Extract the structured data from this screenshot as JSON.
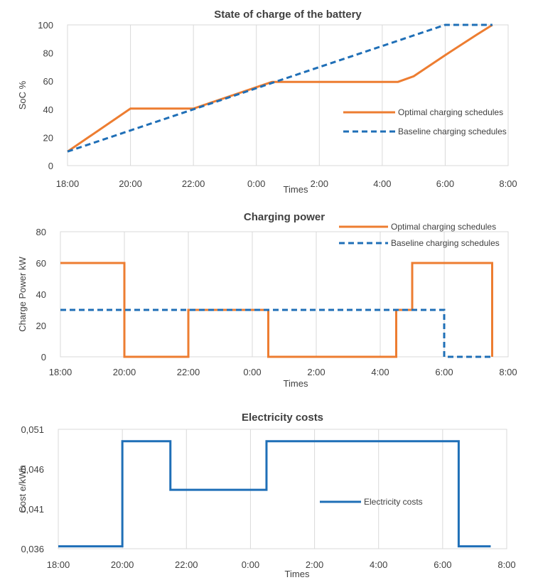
{
  "colors": {
    "optimal": "#ED7D31",
    "baseline": "#1F6FB7",
    "cost": "#1F6FB7",
    "grid": "#D9D9D9",
    "text": "#404040"
  },
  "chart_data": [
    {
      "id": "soc",
      "type": "line",
      "title": "State of charge of the battery",
      "xlabel": "Times",
      "ylabel": "SoC  %",
      "x_unit": "hours since 18:00",
      "xlim": [
        0,
        14
      ],
      "ylim": [
        0,
        100
      ],
      "x_ticks": [
        "18:00",
        "20:00",
        "22:00",
        "0:00",
        "2:00",
        "4:00",
        "6:00",
        "8:00"
      ],
      "y_ticks": [
        "0",
        "20",
        "40",
        "60",
        "80",
        "100"
      ],
      "grid": "vertical",
      "legend_position": "right-middle",
      "series": [
        {
          "name": "Optimal charging schedules",
          "style": "solid",
          "color_key": "optimal",
          "x": [
            "18:00",
            "20:00",
            "22:00",
            "00:30",
            "04:30",
            "05:00",
            "06:00",
            "07:00",
            "07:30"
          ],
          "y": [
            10,
            40.5,
            40.5,
            59.5,
            59.5,
            63.5,
            78.5,
            93,
            100
          ]
        },
        {
          "name": "Baseline charging schedules",
          "style": "dashed",
          "color_key": "baseline",
          "x": [
            "18:00",
            "06:00",
            "07:30"
          ],
          "y": [
            10,
            100,
            100
          ]
        }
      ]
    },
    {
      "id": "power",
      "type": "line",
      "title": "Charging power",
      "xlabel": "Times",
      "ylabel": "Charge Power kW",
      "xlim": [
        0,
        14
      ],
      "ylim": [
        0,
        80
      ],
      "x_ticks": [
        "18:00",
        "20:00",
        "22:00",
        "0:00",
        "2:00",
        "4:00",
        "6:00",
        "8:00"
      ],
      "y_ticks": [
        "0",
        "20",
        "40",
        "60",
        "80"
      ],
      "grid": "vertical",
      "legend_position": "top-right",
      "series": [
        {
          "name": "Optimal charging schedules",
          "style": "solid",
          "color_key": "optimal",
          "x": [
            "18:00",
            "20:00",
            "20:00",
            "22:00",
            "22:00",
            "00:30",
            "00:30",
            "04:30",
            "04:30",
            "05:00",
            "05:00",
            "07:30",
            "07:30"
          ],
          "y": [
            60,
            60,
            0,
            0,
            30,
            30,
            0,
            0,
            30,
            30,
            60,
            60,
            0
          ]
        },
        {
          "name": "Baseline charging schedules",
          "style": "dashed",
          "color_key": "baseline",
          "x": [
            "18:00",
            "06:00",
            "06:00",
            "07:30"
          ],
          "y": [
            30,
            30,
            0,
            0
          ]
        }
      ]
    },
    {
      "id": "cost",
      "type": "line",
      "title": "Electricity costs",
      "xlabel": "Times",
      "ylabel": "Cost e/kWh",
      "xlim": [
        0,
        14
      ],
      "ylim": [
        0.036,
        0.051
      ],
      "x_ticks": [
        "18:00",
        "20:00",
        "22:00",
        "0:00",
        "2:00",
        "4:00",
        "6:00",
        "8:00"
      ],
      "y_ticks": [
        "0,036",
        "0,041",
        "0,046",
        "0,051"
      ],
      "grid": "vertical",
      "legend_position": "right-middle",
      "series": [
        {
          "name": "Electricity costs",
          "style": "solid",
          "color_key": "cost",
          "x": [
            "18:00",
            "20:00",
            "20:00",
            "21:30",
            "21:30",
            "00:30",
            "00:30",
            "06:30",
            "06:30",
            "07:30"
          ],
          "y": [
            0.0363,
            0.0363,
            0.0495,
            0.0495,
            0.0434,
            0.0434,
            0.0495,
            0.0495,
            0.0363,
            0.0363
          ]
        }
      ]
    }
  ]
}
